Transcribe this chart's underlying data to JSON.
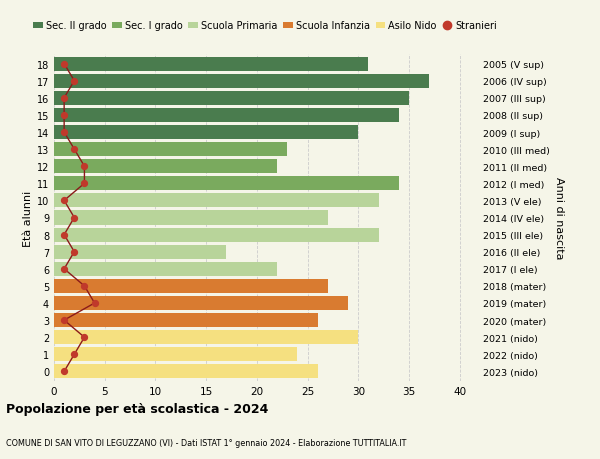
{
  "ages": [
    18,
    17,
    16,
    15,
    14,
    13,
    12,
    11,
    10,
    9,
    8,
    7,
    6,
    5,
    4,
    3,
    2,
    1,
    0
  ],
  "years_labels": [
    "2005 (V sup)",
    "2006 (IV sup)",
    "2007 (III sup)",
    "2008 (II sup)",
    "2009 (I sup)",
    "2010 (III med)",
    "2011 (II med)",
    "2012 (I med)",
    "2013 (V ele)",
    "2014 (IV ele)",
    "2015 (III ele)",
    "2016 (II ele)",
    "2017 (I ele)",
    "2018 (mater)",
    "2019 (mater)",
    "2020 (mater)",
    "2021 (nido)",
    "2022 (nido)",
    "2023 (nido)"
  ],
  "bar_values": [
    31,
    37,
    35,
    34,
    30,
    23,
    22,
    34,
    32,
    27,
    32,
    17,
    22,
    27,
    29,
    26,
    30,
    24,
    26
  ],
  "bar_colors": [
    "#4a7c4e",
    "#4a7c4e",
    "#4a7c4e",
    "#4a7c4e",
    "#4a7c4e",
    "#7aaa5e",
    "#7aaa5e",
    "#7aaa5e",
    "#b8d49a",
    "#b8d49a",
    "#b8d49a",
    "#b8d49a",
    "#b8d49a",
    "#d97b30",
    "#d97b30",
    "#d97b30",
    "#f5e080",
    "#f5e080",
    "#f5e080"
  ],
  "stranieri_values": [
    1,
    2,
    1,
    1,
    1,
    2,
    3,
    3,
    1,
    2,
    1,
    2,
    1,
    3,
    4,
    1,
    3,
    2,
    1
  ],
  "legend_labels": [
    "Sec. II grado",
    "Sec. I grado",
    "Scuola Primaria",
    "Scuola Infanzia",
    "Asilo Nido",
    "Stranieri"
  ],
  "legend_colors": [
    "#4a7c4e",
    "#7aaa5e",
    "#b8d49a",
    "#d97b30",
    "#f5e080",
    "#c0392b"
  ],
  "title": "Popolazione per età scolastica - 2024",
  "subtitle": "COMUNE DI SAN VITO DI LEGUZZANO (VI) - Dati ISTAT 1° gennaio 2024 - Elaborazione TUTTITALIA.IT",
  "ylabel_left": "Età alunni",
  "ylabel_right": "Anni di nascita",
  "xlim": [
    0,
    42
  ],
  "xticks": [
    0,
    5,
    10,
    15,
    20,
    25,
    30,
    35,
    40
  ],
  "background_color": "#f5f5e8",
  "grid_color": "#cccccc",
  "bar_height": 0.82,
  "stranieri_line_color": "#8b1a1a",
  "stranieri_dot_color": "#c0392b"
}
